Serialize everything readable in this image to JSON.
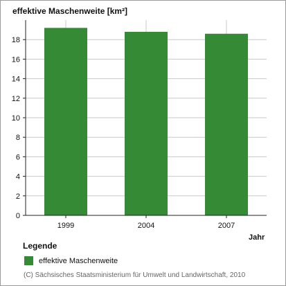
{
  "colors": {
    "bar": "#348a35",
    "grid": "#c8c8c8",
    "axis": "#222222",
    "text": "#111111",
    "footer": "#666666"
  },
  "chart_data": {
    "type": "bar",
    "title": "effektive Maschenweite [km²]",
    "xlabel": "Jahr",
    "ylabel": "",
    "categories": [
      "1999",
      "2004",
      "2007"
    ],
    "series": [
      {
        "name": "effektive Maschenweite",
        "values": [
          19.2,
          18.8,
          18.6
        ]
      }
    ],
    "ylim": [
      0,
      20
    ],
    "yticks": [
      0,
      2,
      4,
      6,
      8,
      10,
      12,
      14,
      16,
      18
    ],
    "grid": true,
    "legend_placement": "bottom-left"
  },
  "legend": {
    "title": "Legende",
    "items": [
      "effektive Maschenweite"
    ]
  },
  "footer": {
    "copyright": "(C) Sächsisches Staatsministerium für Umwelt und Landwirtschaft, 2010"
  }
}
